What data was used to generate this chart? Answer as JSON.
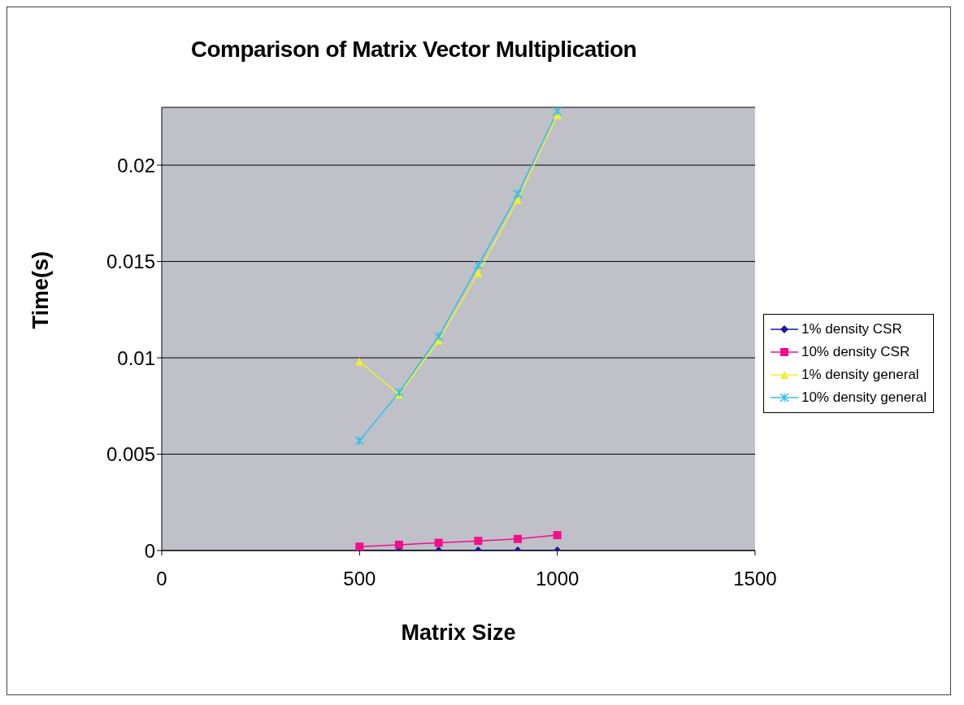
{
  "chart_data": {
    "type": "line",
    "title": "Comparison of Matrix Vector Multiplication",
    "xlabel": "Matrix Size",
    "ylabel": "Time(s)",
    "x": [
      500,
      600,
      700,
      800,
      900,
      1000
    ],
    "series": [
      {
        "name": "1% density CSR",
        "color": "#1a1a9a",
        "marker": "diamond",
        "values": [
          0,
          0,
          0,
          0,
          0,
          0
        ]
      },
      {
        "name": "10% density CSR",
        "color": "#f0108a",
        "marker": "square",
        "values": [
          0.0002,
          0.0003,
          0.0004,
          0.0005,
          0.0006,
          0.0008
        ]
      },
      {
        "name": "1% density general",
        "color": "#f0f030",
        "marker": "triangle",
        "values": [
          0.0098,
          0.0081,
          0.0109,
          0.0144,
          0.0182,
          0.0226
        ]
      },
      {
        "name": "10% density general",
        "color": "#30c0e8",
        "marker": "cross",
        "values": [
          0.0057,
          0.0082,
          0.0111,
          0.0148,
          0.0185,
          0.0228
        ]
      }
    ],
    "xlim": [
      0,
      1500
    ],
    "xticks": [
      0,
      500,
      1000,
      1500
    ],
    "ylim": [
      0,
      0.023
    ],
    "yticks": [
      0,
      0.005,
      0.01,
      0.015,
      0.02
    ],
    "grid": "y",
    "legend": "right",
    "line_style": "solid"
  }
}
